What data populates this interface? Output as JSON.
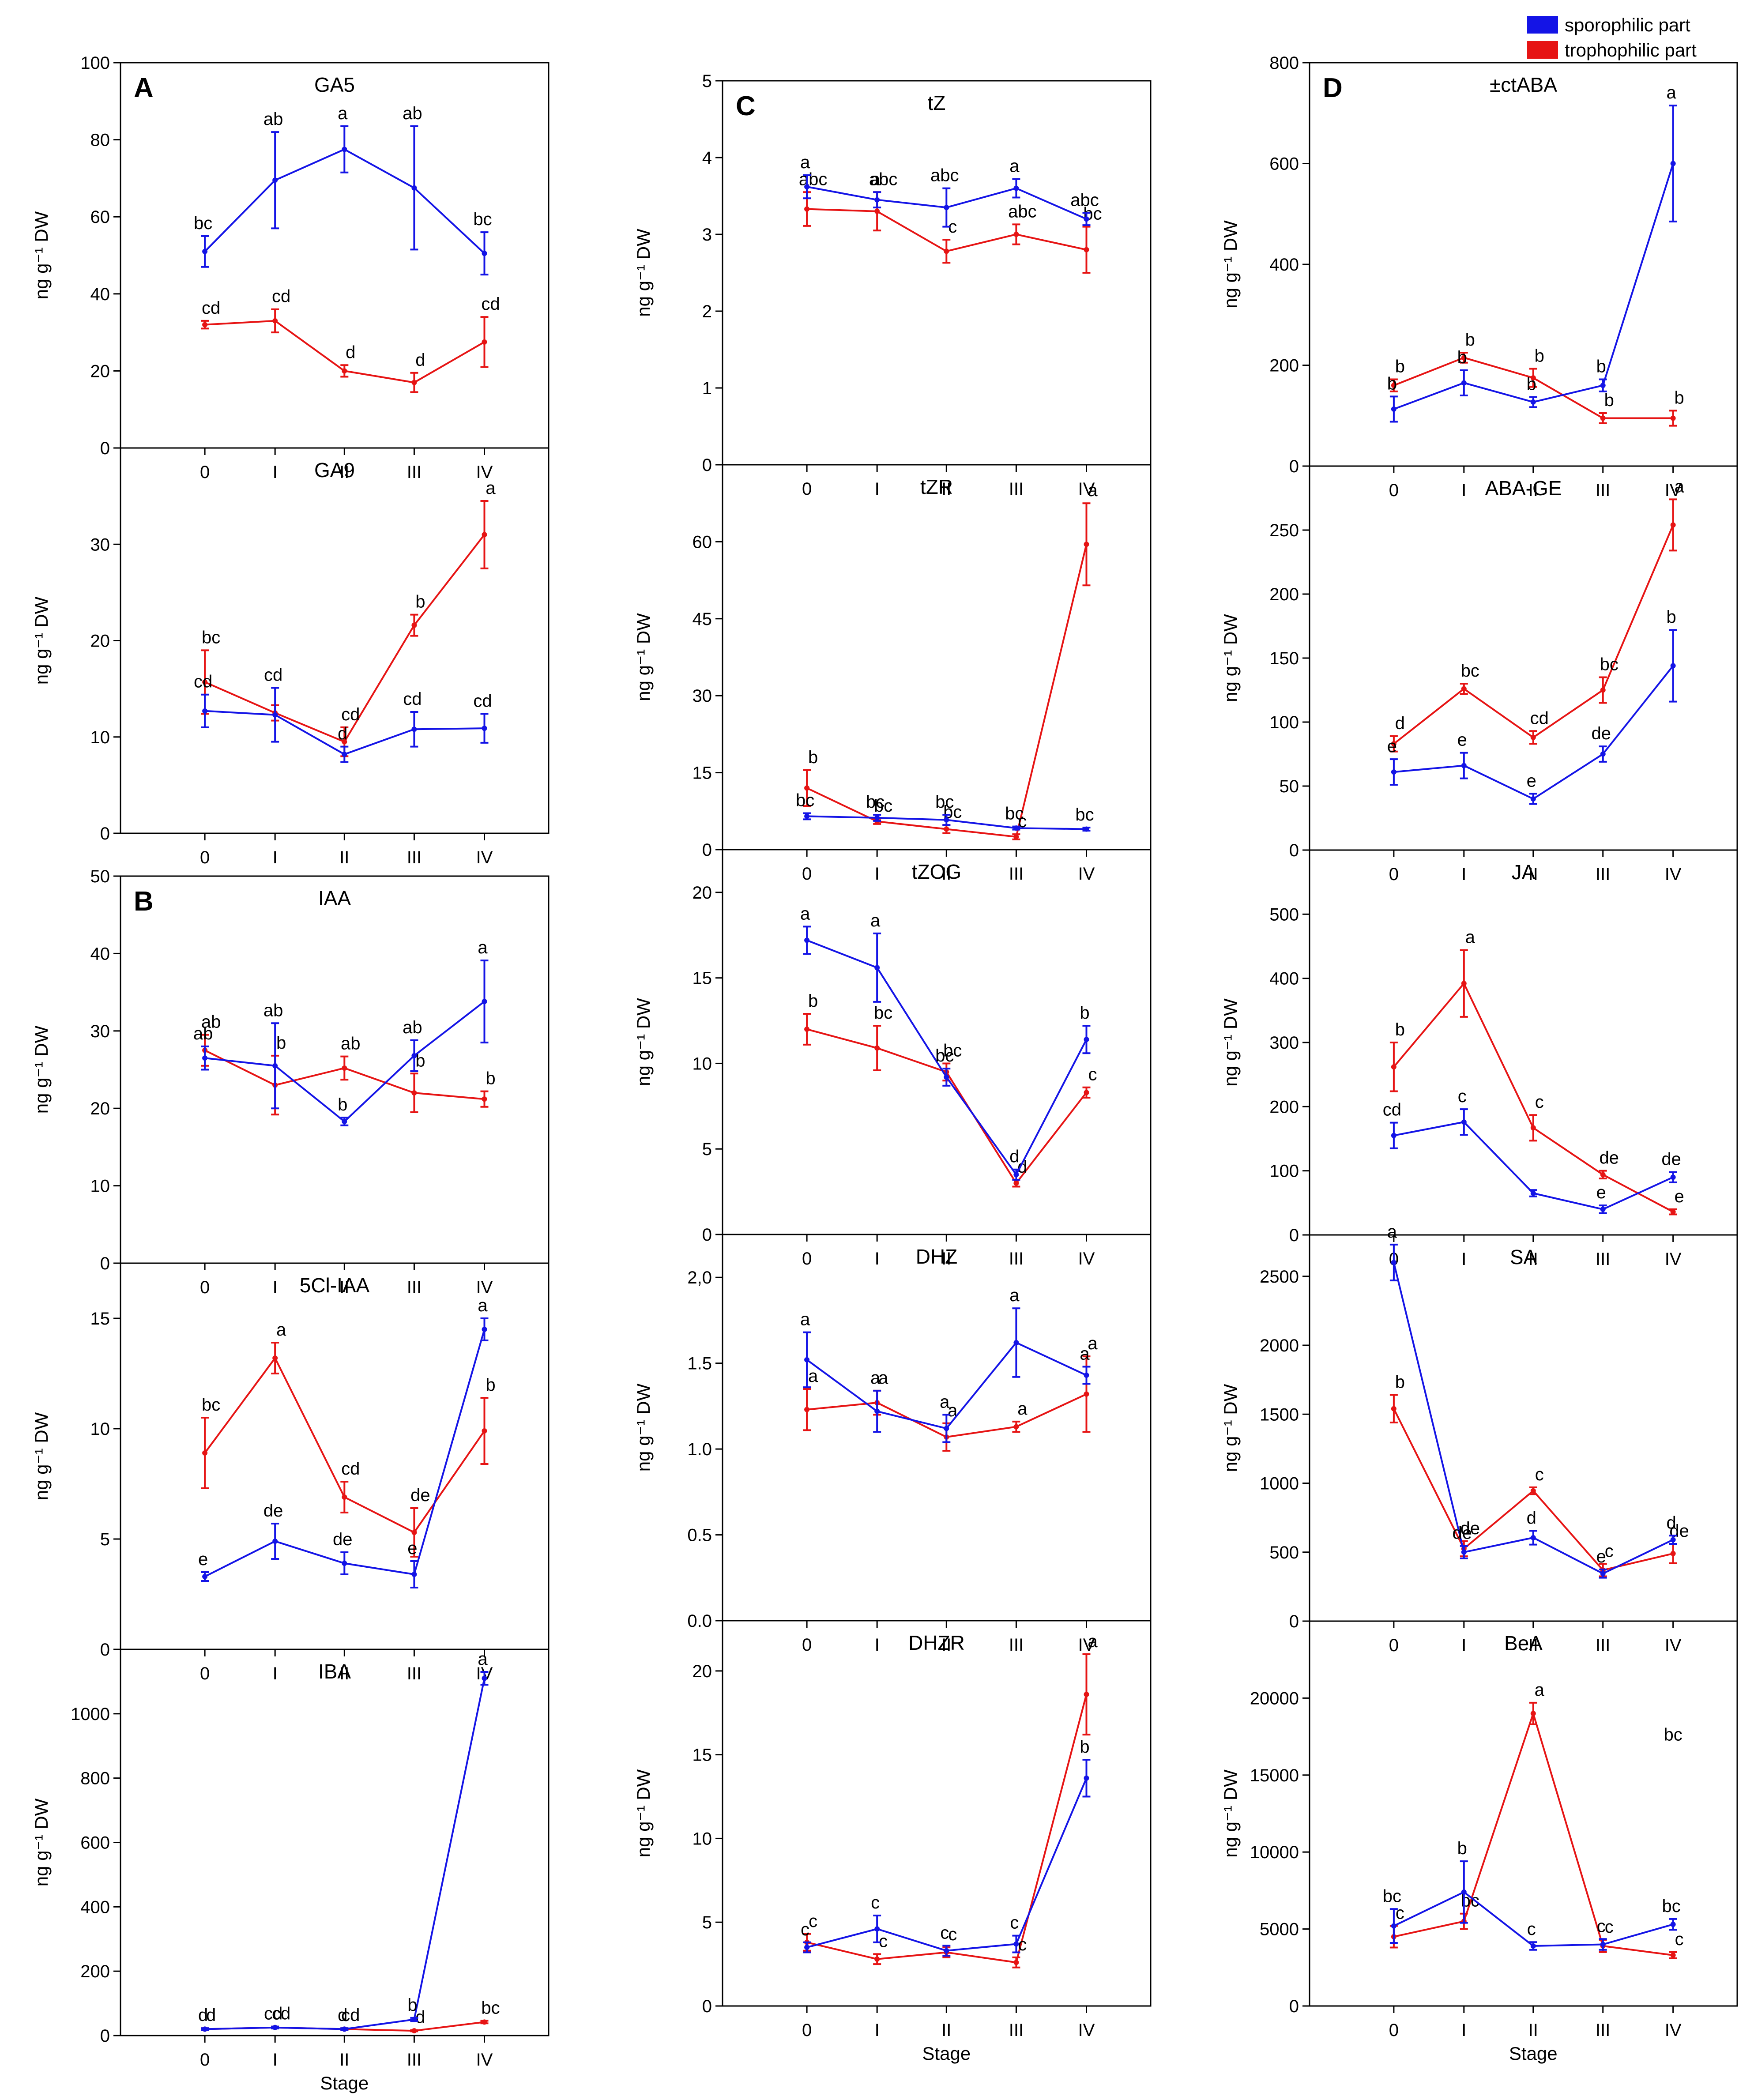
{
  "legend": {
    "items": [
      {
        "label": "sporophilic part",
        "color": "#1414e6"
      },
      {
        "label": "trophophilic part",
        "color": "#e61414"
      }
    ]
  },
  "colors": {
    "sporophilic": "#1414e6",
    "trophophilic": "#e61414"
  },
  "chart_data": [
    {
      "type": "line",
      "title": "GA5",
      "panel_letter": "A",
      "ylabel": "ng g⁻¹ DW",
      "xlabel": "",
      "ylim": [
        0,
        100
      ],
      "yticks": [
        0,
        20,
        40,
        60,
        80,
        100
      ],
      "categories": [
        "0",
        "I",
        "II",
        "III",
        "IV"
      ],
      "series": [
        {
          "name": "sporophilic part",
          "values": [
            51,
            69.5,
            77.5,
            67.5,
            50.5
          ],
          "errors": [
            4,
            12.5,
            6,
            16,
            5.5
          ],
          "letters": [
            "bc",
            "ab",
            "a",
            "ab",
            "bc"
          ]
        },
        {
          "name": "trophophilic part",
          "values": [
            32,
            33,
            20,
            17,
            27.5
          ],
          "errors": [
            1,
            3,
            1.5,
            2.5,
            6.5
          ],
          "letters": [
            "cd",
            "cd",
            "d",
            "d",
            "cd"
          ]
        }
      ]
    },
    {
      "type": "line",
      "title": "GA9",
      "panel_letter": "",
      "ylabel": "ng g⁻¹ DW",
      "xlabel": "",
      "ylim": [
        0,
        40
      ],
      "yticks": [
        0,
        10,
        20,
        30
      ],
      "categories": [
        "0",
        "I",
        "II",
        "III",
        "IV"
      ],
      "series": [
        {
          "name": "sporophilic part",
          "values": [
            12.7,
            12.3,
            8.2,
            10.8,
            10.9
          ],
          "errors": [
            1.7,
            2.8,
            0.8,
            1.8,
            1.5
          ],
          "letters": [
            "cd",
            "cd",
            "d",
            "cd",
            "cd"
          ]
        },
        {
          "name": "trophophilic part",
          "values": [
            15.7,
            12.5,
            9.5,
            21.6,
            31.0
          ],
          "errors": [
            3.3,
            0.8,
            1.5,
            1.1,
            3.5
          ],
          "letters": [
            "bc",
            "",
            "cd",
            "b",
            "a"
          ]
        }
      ]
    },
    {
      "type": "line",
      "title": "IAA",
      "panel_letter": "B",
      "ylabel": "ng g⁻¹ DW",
      "xlabel": "",
      "ylim": [
        0,
        50
      ],
      "yticks": [
        0,
        10,
        20,
        30,
        40,
        50
      ],
      "categories": [
        "0",
        "I",
        "II",
        "III",
        "IV"
      ],
      "series": [
        {
          "name": "sporophilic part",
          "values": [
            26.5,
            25.5,
            18.3,
            26.8,
            33.8
          ],
          "errors": [
            1.5,
            5.5,
            0.5,
            2,
            5.3
          ],
          "letters": [
            "ab",
            "ab",
            "b",
            "ab",
            "a"
          ]
        },
        {
          "name": "trophophilic part",
          "values": [
            27.5,
            23.0,
            25.2,
            22.0,
            21.2
          ],
          "errors": [
            2,
            3.8,
            1.5,
            2.5,
            1
          ],
          "letters": [
            "ab",
            "b",
            "ab",
            "b",
            "b"
          ]
        }
      ]
    },
    {
      "type": "line",
      "title": "5Cl-IAA",
      "panel_letter": "",
      "ylabel": "ng g⁻¹ DW",
      "xlabel": "",
      "ylim": [
        0,
        17.5
      ],
      "yticks": [
        0,
        5,
        10,
        15
      ],
      "categories": [
        "0",
        "I",
        "II",
        "III",
        "IV"
      ],
      "series": [
        {
          "name": "sporophilic part",
          "values": [
            3.3,
            4.9,
            3.9,
            3.4,
            14.5
          ],
          "errors": [
            0.2,
            0.8,
            0.5,
            0.6,
            0.5
          ],
          "letters": [
            "e",
            "de",
            "de",
            "e",
            "a"
          ]
        },
        {
          "name": "trophophilic part",
          "values": [
            8.9,
            13.2,
            6.9,
            5.3,
            9.9
          ],
          "errors": [
            1.6,
            0.7,
            0.7,
            1.1,
            1.5
          ],
          "letters": [
            "bc",
            "a",
            "cd",
            "de",
            "b"
          ]
        }
      ]
    },
    {
      "type": "line",
      "title": "IBA",
      "panel_letter": "",
      "ylabel": "ng g⁻¹ DW",
      "xlabel": "Stage",
      "ylim": [
        0,
        1200
      ],
      "yticks": [
        0,
        200,
        400,
        600,
        800,
        1000
      ],
      "categories": [
        "0",
        "I",
        "II",
        "III",
        "IV"
      ],
      "series": [
        {
          "name": "sporophilic part",
          "values": [
            20,
            25,
            20,
            50,
            1110
          ],
          "errors": [
            3,
            3,
            3,
            5,
            20
          ],
          "letters": [
            "d",
            "cd",
            "d",
            "b",
            "a"
          ]
        },
        {
          "name": "trophophilic part",
          "values": [
            20,
            25,
            20,
            15,
            42
          ],
          "errors": [
            3,
            3,
            3,
            2,
            4
          ],
          "letters": [
            "d",
            "cd",
            "cd",
            "d",
            "bc"
          ]
        }
      ]
    },
    {
      "type": "line",
      "title": "tZ",
      "panel_letter": "C",
      "ylabel": "ng g⁻¹ DW",
      "xlabel": "",
      "ylim": [
        0,
        5
      ],
      "yticks": [
        0,
        1,
        2,
        3,
        4,
        5
      ],
      "categories": [
        "0",
        "I",
        "II",
        "III",
        "IV"
      ],
      "series": [
        {
          "name": "sporophilic part",
          "values": [
            3.62,
            3.45,
            3.35,
            3.6,
            3.2
          ],
          "errors": [
            0.15,
            0.1,
            0.25,
            0.12,
            0.08
          ],
          "letters": [
            "a",
            "a",
            "abc",
            "a",
            "abc"
          ]
        },
        {
          "name": "trophophilic part",
          "values": [
            3.33,
            3.3,
            2.78,
            3.0,
            2.8
          ],
          "errors": [
            0.22,
            0.25,
            0.15,
            0.13,
            0.3
          ],
          "letters": [
            "abc",
            "abc",
            "c",
            "abc",
            "bc"
          ]
        }
      ]
    },
    {
      "type": "line",
      "title": "tZR",
      "panel_letter": "",
      "ylabel": "ng g⁻¹ DW",
      "xlabel": "",
      "ylim": [
        0,
        75
      ],
      "yticks": [
        0,
        15,
        30,
        45,
        60
      ],
      "categories": [
        "0",
        "I",
        "II",
        "III",
        "IV"
      ],
      "series": [
        {
          "name": "sporophilic part",
          "values": [
            6.5,
            6.2,
            5.8,
            4.2,
            4.0
          ],
          "errors": [
            0.6,
            0.6,
            1.0,
            0.3,
            0.3
          ],
          "letters": [
            "bc",
            "bc",
            "bc",
            "bc",
            "bc"
          ]
        },
        {
          "name": "trophophilic part",
          "values": [
            12,
            5.5,
            4.0,
            2.5,
            59.5
          ],
          "errors": [
            3.5,
            0.5,
            0.8,
            0.5,
            8
          ],
          "letters": [
            "b",
            "bc",
            "bc",
            "c",
            "a"
          ]
        }
      ]
    },
    {
      "type": "line",
      "title": "tZOG",
      "panel_letter": "",
      "ylabel": "ng g⁻¹ DW",
      "xlabel": "",
      "ylim": [
        0,
        22.5
      ],
      "yticks": [
        0,
        5,
        10,
        15,
        20
      ],
      "categories": [
        "0",
        "I",
        "II",
        "III",
        "IV"
      ],
      "series": [
        {
          "name": "sporophilic part",
          "values": [
            17.2,
            15.6,
            9.2,
            3.5,
            11.4
          ],
          "errors": [
            0.8,
            2.0,
            0.5,
            0.3,
            0.8
          ],
          "letters": [
            "a",
            "a",
            "bc",
            "d",
            "b"
          ]
        },
        {
          "name": "trophophilic part",
          "values": [
            12.0,
            10.9,
            9.5,
            3.0,
            8.3
          ],
          "errors": [
            0.9,
            1.3,
            0.5,
            0.2,
            0.3
          ],
          "letters": [
            "b",
            "bc",
            "bc",
            "d",
            "c"
          ]
        }
      ]
    },
    {
      "type": "line",
      "title": "DHZ",
      "panel_letter": "",
      "ylabel": "ng g⁻¹ DW",
      "xlabel": "",
      "ylim": [
        0,
        2.25
      ],
      "yticks": [
        0,
        0.5,
        1.0,
        1.5,
        2.0
      ],
      "ytick_labels": [
        "0.0",
        "0.5",
        "1.0",
        "1.5",
        "2,0"
      ],
      "categories": [
        "0",
        "I",
        "II",
        "III",
        "IV"
      ],
      "series": [
        {
          "name": "sporophilic part",
          "values": [
            1.52,
            1.22,
            1.12,
            1.62,
            1.43
          ],
          "errors": [
            0.16,
            0.12,
            0.08,
            0.2,
            0.05
          ],
          "letters": [
            "a",
            "a",
            "a",
            "a",
            "a"
          ]
        },
        {
          "name": "trophophilic part",
          "values": [
            1.23,
            1.27,
            1.07,
            1.13,
            1.32
          ],
          "errors": [
            0.12,
            0.07,
            0.08,
            0.03,
            0.22
          ],
          "letters": [
            "a",
            "a",
            "a",
            "a",
            "a"
          ]
        }
      ]
    },
    {
      "type": "line",
      "title": "DHZR",
      "panel_letter": "",
      "ylabel": "ng g⁻¹ DW",
      "xlabel": "Stage",
      "ylim": [
        0,
        23
      ],
      "yticks": [
        0,
        5,
        10,
        15,
        20
      ],
      "categories": [
        "0",
        "I",
        "II",
        "III",
        "IV"
      ],
      "series": [
        {
          "name": "sporophilic part",
          "values": [
            3.5,
            4.6,
            3.3,
            3.7,
            13.6
          ],
          "errors": [
            0.3,
            0.8,
            0.3,
            0.5,
            1.1
          ],
          "letters": [
            "c",
            "c",
            "c",
            "c",
            "b"
          ]
        },
        {
          "name": "trophophilic part",
          "values": [
            3.8,
            2.8,
            3.2,
            2.6,
            18.6
          ],
          "errors": [
            0.5,
            0.3,
            0.3,
            0.3,
            2.4
          ],
          "letters": [
            "c",
            "c",
            "c",
            "c",
            "a"
          ]
        }
      ]
    },
    {
      "type": "line",
      "title": "±ctABA",
      "panel_letter": "D",
      "ylabel": "ng g⁻¹ DW",
      "xlabel": "",
      "ylim": [
        0,
        800
      ],
      "yticks": [
        0,
        200,
        400,
        600,
        800
      ],
      "categories": [
        "0",
        "I",
        "II",
        "III",
        "IV"
      ],
      "series": [
        {
          "name": "sporophilic part",
          "values": [
            113,
            165,
            127,
            160,
            600
          ],
          "errors": [
            25,
            25,
            10,
            12,
            115
          ],
          "letters": [
            "b",
            "b",
            "b",
            "b",
            "a"
          ]
        },
        {
          "name": "trophophilic part",
          "values": [
            160,
            215,
            175,
            95,
            95
          ],
          "errors": [
            12,
            10,
            18,
            10,
            15
          ],
          "letters": [
            "b",
            "b",
            "b",
            "b",
            "b"
          ]
        }
      ]
    },
    {
      "type": "line",
      "title": "ABA-GE",
      "panel_letter": "",
      "ylabel": "ng g⁻¹ DW",
      "xlabel": "",
      "ylim": [
        0,
        300
      ],
      "yticks": [
        0,
        50,
        100,
        150,
        200,
        250
      ],
      "categories": [
        "0",
        "I",
        "II",
        "III",
        "IV"
      ],
      "series": [
        {
          "name": "sporophilic part",
          "values": [
            61,
            66,
            40,
            75,
            144
          ],
          "errors": [
            10,
            10,
            4,
            6,
            28
          ],
          "letters": [
            "e",
            "e",
            "e",
            "de",
            "b"
          ]
        },
        {
          "name": "trophophilic part",
          "values": [
            83,
            126,
            88,
            125,
            254
          ],
          "errors": [
            6,
            4,
            5,
            10,
            20
          ],
          "letters": [
            "d",
            "bc",
            "cd",
            "bc",
            "a"
          ]
        }
      ]
    },
    {
      "type": "line",
      "title": "JA",
      "panel_letter": "",
      "ylabel": "ng g⁻¹ DW",
      "xlabel": "",
      "ylim": [
        0,
        600
      ],
      "yticks": [
        0,
        100,
        200,
        300,
        400,
        500
      ],
      "categories": [
        "0",
        "I",
        "II",
        "III",
        "IV"
      ],
      "series": [
        {
          "name": "sporophilic part",
          "values": [
            155,
            176,
            65,
            40,
            90
          ],
          "errors": [
            20,
            20,
            5,
            6,
            8
          ],
          "letters": [
            "cd",
            "c",
            "",
            "e",
            "de"
          ]
        },
        {
          "name": "trophophilic part",
          "values": [
            262,
            392,
            167,
            94,
            36
          ],
          "errors": [
            38,
            52,
            20,
            6,
            4
          ],
          "letters": [
            "b",
            "a",
            "c",
            "de",
            "e"
          ]
        }
      ]
    },
    {
      "type": "line",
      "title": "SA",
      "panel_letter": "",
      "ylabel": "ng g⁻¹ DW",
      "xlabel": "",
      "ylim": [
        0,
        2800
      ],
      "yticks": [
        0,
        500,
        1000,
        1500,
        2000,
        2500
      ],
      "categories": [
        "0",
        "I",
        "II",
        "III",
        "IV"
      ],
      "series": [
        {
          "name": "sporophilic part",
          "values": [
            2600,
            500,
            605,
            345,
            590
          ],
          "errors": [
            130,
            45,
            50,
            30,
            30
          ],
          "letters": [
            "a",
            "de",
            "d",
            "e",
            "d"
          ]
        },
        {
          "name": "trophophilic part",
          "values": [
            1540,
            525,
            945,
            370,
            490
          ],
          "errors": [
            100,
            55,
            25,
            45,
            70
          ],
          "letters": [
            "b",
            "de",
            "c",
            "c",
            "de"
          ]
        }
      ]
    },
    {
      "type": "line",
      "title": "BeA",
      "panel_letter": "",
      "ylabel": "ng g⁻¹ DW",
      "xlabel": "Stage",
      "ylim": [
        0,
        25000
      ],
      "yticks": [
        0,
        5000,
        10000,
        15000,
        20000
      ],
      "categories": [
        "0",
        "I",
        "II",
        "III",
        "IV"
      ],
      "annotations": [
        "bc"
      ],
      "series": [
        {
          "name": "sporophilic part",
          "values": [
            5200,
            7400,
            3900,
            4000,
            5300
          ],
          "errors": [
            1100,
            2000,
            250,
            350,
            350
          ],
          "letters": [
            "bc",
            "b",
            "c",
            "c",
            "bc"
          ]
        },
        {
          "name": "trophophilic part",
          "values": [
            4500,
            5500,
            19000,
            3900,
            3300
          ],
          "errors": [
            700,
            500,
            700,
            400,
            200
          ],
          "letters": [
            "c",
            "bc",
            "a",
            "c",
            "c"
          ]
        }
      ]
    }
  ]
}
